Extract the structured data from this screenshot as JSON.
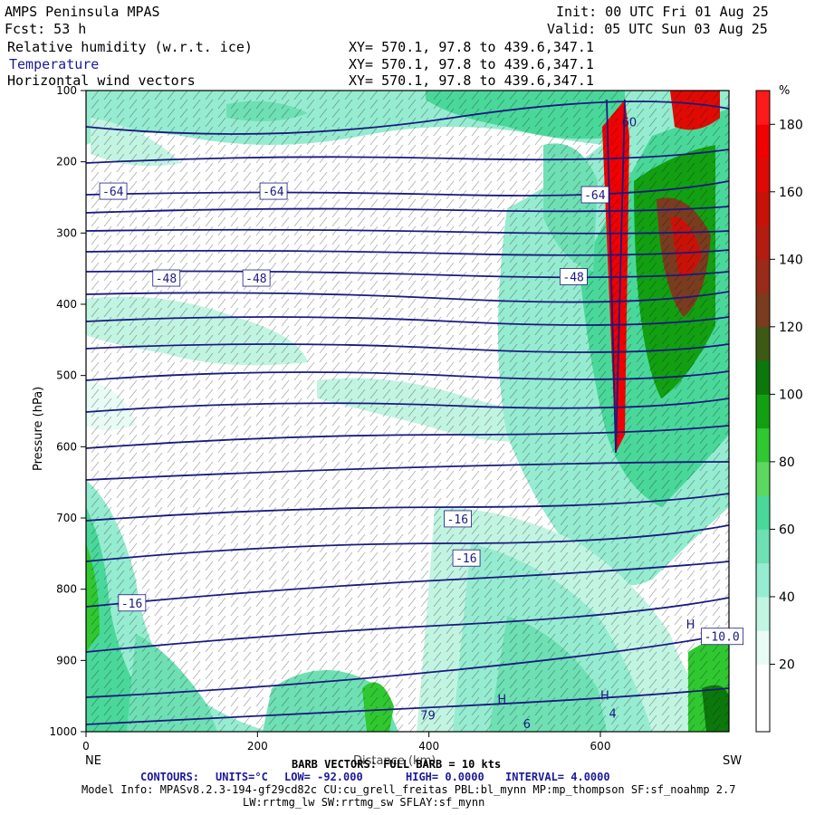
{
  "header": {
    "title": "AMPS Peninsula MPAS",
    "forecast": "Fcst:   53 h",
    "init": "Init: 00 UTC Fri 01 Aug 25",
    "valid": "Valid: 05 UTC Sun 03 Aug 25",
    "fields": [
      {
        "name": "Relative humidity (w.r.t. ice)",
        "coords": "XY= 570.1, 97.8 to 439.6,347.1"
      },
      {
        "name": "Temperature",
        "coords": "XY= 570.1, 97.8 to 439.6,347.1"
      },
      {
        "name": "Horizontal wind vectors",
        "coords": "XY= 570.1, 97.8 to 439.6,347.1"
      }
    ]
  },
  "chart_data": {
    "type": "heatmap",
    "ylabel": "Pressure (hPa)",
    "xlabel": "Distance (km)",
    "x_ticks": [
      "0",
      "200",
      "400",
      "600"
    ],
    "y_ticks": [
      "100",
      "200",
      "300",
      "400",
      "500",
      "600",
      "700",
      "800",
      "900",
      "1000"
    ],
    "xlim": [
      0,
      750
    ],
    "ylim": [
      1000,
      100
    ],
    "end_labels": {
      "left": "NE",
      "right": "SW"
    },
    "colorbar": {
      "unit": "%",
      "ticks": [
        "20",
        "40",
        "60",
        "80",
        "100",
        "120",
        "140",
        "160",
        "180"
      ],
      "colors": [
        "#ffffff",
        "#ffffff",
        "#e8fbf4",
        "#c2f4e2",
        "#96ecd0",
        "#6ee0b4",
        "#4ad89a",
        "#5cd860",
        "#30c830",
        "#12a012",
        "#0c780c",
        "#3c5a14",
        "#7a3c1e",
        "#9a2a1a",
        "#b41c12",
        "#c81208",
        "#e00a04",
        "#f00000",
        "#ff1a1a"
      ]
    },
    "contour_labels": [
      {
        "text": "-64",
        "x": 18,
        "y": 245
      },
      {
        "text": "-64",
        "x": 205,
        "y": 245
      },
      {
        "text": "-64",
        "x": 580,
        "y": 250
      },
      {
        "text": "-48",
        "x": 80,
        "y": 367
      },
      {
        "text": "-48",
        "x": 185,
        "y": 367
      },
      {
        "text": "-48",
        "x": 555,
        "y": 365
      },
      {
        "text": "-16",
        "x": 420,
        "y": 705
      },
      {
        "text": "-16",
        "x": 430,
        "y": 760
      },
      {
        "text": "-16",
        "x": 40,
        "y": 823
      },
      {
        "text": "-10.0",
        "x": 720,
        "y": 870
      }
    ],
    "extremum_labels": [
      {
        "text": "H",
        "x": 700,
        "y": 855
      },
      {
        "text": "H",
        "x": 480,
        "y": 960
      },
      {
        "text": "79",
        "x": 390,
        "y": 983
      },
      {
        "text": "6",
        "x": 510,
        "y": 995
      },
      {
        "text": "4",
        "x": 610,
        "y": 980
      },
      {
        "text": "H",
        "x": 600,
        "y": 955
      },
      {
        "text": "60",
        "x": 625,
        "y": 150
      }
    ]
  },
  "footer": {
    "barb_note": "BARB VECTORS: FULL BARB = 10 kts",
    "contours_prefix": "CONTOURS:",
    "units": "UNITS=°C",
    "low": "LOW= -92.000",
    "high": "HIGH=  0.0000",
    "interval": "INTERVAL=   4.0000",
    "model_info": "Model Info: MPASv8.2.3-194-gf29cd82c CU:cu_grell_freitas PBL:bl_mynn MP:mp_thompson SF:sf_noahmp 2.7",
    "model_info2": "LW:rrtmg_lw SW:rrtmg_sw SFLAY:sf_mynn"
  }
}
